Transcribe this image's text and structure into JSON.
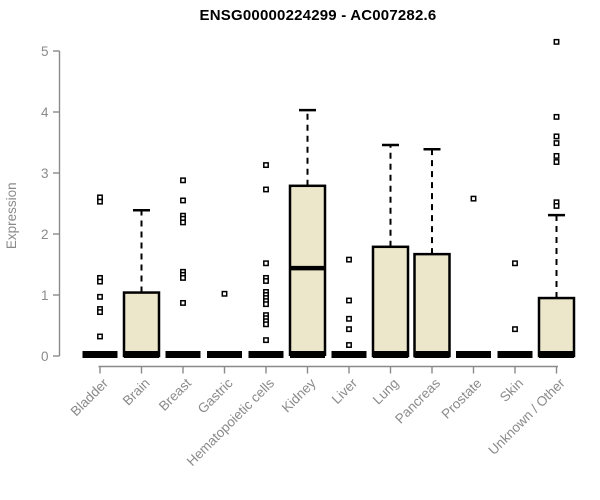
{
  "chart_data": {
    "type": "boxplot",
    "title": "ENSG00000224299 - AC007282.6",
    "xlabel": "",
    "ylabel": "Expression",
    "ylim": [
      0,
      5.2
    ],
    "yticks": [
      0,
      1,
      2,
      3,
      4,
      5
    ],
    "grid": false,
    "legend": "none",
    "categories": [
      "Bladder",
      "Brain",
      "Breast",
      "Gastric",
      "Hematopoietic cells",
      "Kidney",
      "Liver",
      "Lung",
      "Pancreas",
      "Prostate",
      "Skin",
      "Unknown / Other"
    ],
    "boxes": [
      {
        "category": "Bladder",
        "whisker_low": 0,
        "q1": 0,
        "median": 0.02,
        "q3": 0.05,
        "whisker_high": 0.05,
        "outliers": [
          2.6,
          2.53,
          1.28,
          1.22,
          0.97,
          0.77,
          0.72,
          0.32
        ]
      },
      {
        "category": "Brain",
        "whisker_low": 0,
        "q1": 0,
        "median": 0.02,
        "q3": 1.04,
        "whisker_high": 2.39,
        "outliers": []
      },
      {
        "category": "Breast",
        "whisker_low": 0,
        "q1": 0,
        "median": 0.02,
        "q3": 0.05,
        "whisker_high": 0.05,
        "outliers": [
          2.88,
          2.55,
          2.3,
          2.25,
          2.19,
          1.38,
          1.33,
          1.28,
          0.87
        ]
      },
      {
        "category": "Gastric",
        "whisker_low": 0,
        "q1": 0,
        "median": 0.02,
        "q3": 0.05,
        "whisker_high": 0.05,
        "outliers": [
          1.02
        ]
      },
      {
        "category": "Hematopoietic cells",
        "whisker_low": 0,
        "q1": 0,
        "median": 0.02,
        "q3": 0.05,
        "whisker_high": 0.05,
        "outliers": [
          3.13,
          2.73,
          1.52,
          1.28,
          1.23,
          1.05,
          1.0,
          0.95,
          0.9,
          0.85,
          0.67,
          0.62,
          0.57,
          0.52,
          0.26
        ]
      },
      {
        "category": "Kidney",
        "whisker_low": 0,
        "q1": 0.02,
        "median": 1.44,
        "q3": 2.79,
        "whisker_high": 4.03,
        "outliers": []
      },
      {
        "category": "Liver",
        "whisker_low": 0,
        "q1": 0,
        "median": 0.02,
        "q3": 0.05,
        "whisker_high": 0.05,
        "outliers": [
          1.58,
          0.91,
          0.61,
          0.44,
          0.18
        ]
      },
      {
        "category": "Lung",
        "whisker_low": 0,
        "q1": 0,
        "median": 0.03,
        "q3": 1.79,
        "whisker_high": 3.46,
        "outliers": []
      },
      {
        "category": "Pancreas",
        "whisker_low": 0,
        "q1": 0,
        "median": 0.03,
        "q3": 1.67,
        "whisker_high": 3.39,
        "outliers": []
      },
      {
        "category": "Prostate",
        "whisker_low": 0,
        "q1": 0,
        "median": 0.02,
        "q3": 0.05,
        "whisker_high": 0.05,
        "outliers": [
          2.58
        ]
      },
      {
        "category": "Skin",
        "whisker_low": 0,
        "q1": 0,
        "median": 0.02,
        "q3": 0.05,
        "whisker_high": 0.05,
        "outliers": [
          1.52,
          0.44
        ]
      },
      {
        "category": "Unknown / Other",
        "whisker_low": 0,
        "q1": 0,
        "median": 0.03,
        "q3": 0.95,
        "whisker_high": 2.31,
        "outliers": [
          5.15,
          3.92,
          3.6,
          3.49,
          3.28,
          3.18,
          2.52,
          2.46
        ]
      }
    ],
    "colors": {
      "box_fill": "#ece7ca",
      "box_stroke": "#000000",
      "median": "#000000",
      "whisker": "#000000",
      "outlier_stroke": "#000000",
      "outlier_fill": "#ffffff",
      "axis": "#8a8a8a",
      "tick_label": "#8a8a8a",
      "title": "#000000",
      "background": "#ffffff"
    }
  }
}
